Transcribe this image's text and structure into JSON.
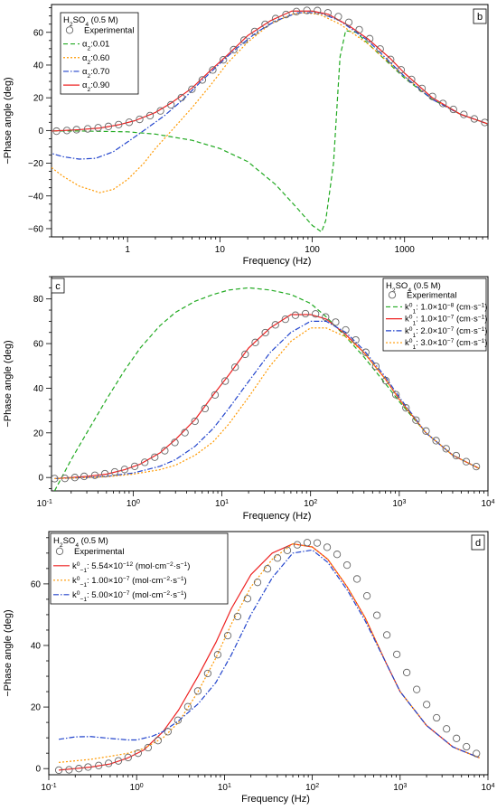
{
  "chart_data": [
    {
      "panel": "b",
      "type": "line",
      "xscale": "log",
      "xlim": [
        0.15,
        8000
      ],
      "ylim": [
        -65,
        77
      ],
      "xlabel": "Frequency (Hz)",
      "ylabel": "−Phase angle (deg)",
      "xticks": [
        1,
        10,
        100,
        1000
      ],
      "xtick_labels": [
        "1",
        "10",
        "100",
        "1000"
      ],
      "yticks": [
        -60,
        -40,
        -20,
        0,
        20,
        40,
        60
      ],
      "grid": false,
      "legend_position": "top-left",
      "legend_title_parts": [
        "H",
        "2",
        "SO",
        "4",
        " (0.5 M)"
      ],
      "experimental": {
        "name": "Experimental",
        "x": [
          0.13,
          0.17,
          0.22,
          0.28,
          0.37,
          0.48,
          0.62,
          0.8,
          1.04,
          1.35,
          1.75,
          2.27,
          2.95,
          3.83,
          4.97,
          6.45,
          8.37,
          10.9,
          14.1,
          18.3,
          23.8,
          30.9,
          40.1,
          52.0,
          67.5,
          87.6,
          113.7,
          147.6,
          191.6,
          248.7,
          322.8,
          419.0,
          543.9,
          706.0,
          916.4,
          1189.5,
          1544.1,
          2004.3,
          2601.8,
          3377.3,
          4383.9,
          5690.6,
          7386.7
        ],
        "y": [
          -0.5,
          -0.4,
          0.0,
          0.5,
          1.0,
          1.7,
          2.5,
          3.6,
          5.0,
          6.8,
          9.1,
          12.0,
          15.7,
          20.1,
          25.2,
          30.9,
          37.0,
          43.2,
          49.4,
          55.2,
          60.5,
          64.9,
          68.4,
          70.9,
          72.7,
          73.4,
          73.3,
          71.9,
          69.6,
          66.1,
          61.6,
          56.1,
          49.8,
          43.4,
          37.1,
          31.2,
          25.7,
          20.8,
          16.5,
          12.9,
          9.8,
          7.1,
          4.9
        ]
      },
      "series": [
        {
          "name": "α₂:0.01",
          "label_parts": [
            "α",
            "2",
            ":0.01"
          ],
          "color": "#22aa22",
          "dash": "5,3",
          "x": [
            0.13,
            0.3,
            1,
            2,
            5,
            10,
            20,
            40,
            70,
            100,
            126,
            140,
            170,
            200,
            230,
            300,
            500,
            1000,
            2000,
            4000,
            8000
          ],
          "y": [
            -0.3,
            -0.3,
            -0.8,
            -2.2,
            -6,
            -11,
            -19,
            -33,
            -48,
            -58,
            -62,
            -55,
            -20,
            45,
            61,
            60,
            48,
            32,
            19,
            10,
            4
          ]
        },
        {
          "name": "α₂:0.60",
          "label_parts": [
            "α",
            "2",
            ":0.60"
          ],
          "color": "#ff9900",
          "dash": "2,2",
          "x": [
            0.13,
            0.2,
            0.3,
            0.5,
            0.7,
            1,
            1.5,
            2,
            3,
            5,
            8,
            12,
            20,
            35,
            60,
            80,
            120,
            200,
            400,
            1000,
            2000,
            4000,
            8000
          ],
          "y": [
            -20,
            -28,
            -34,
            -38,
            -36,
            -30,
            -20,
            -11,
            0,
            14,
            28,
            41,
            54,
            65,
            71,
            72,
            71,
            65,
            53,
            33,
            19,
            10,
            4
          ]
        },
        {
          "name": "α₂:0.70",
          "label_parts": [
            "α",
            "2",
            ":0.70"
          ],
          "color": "#2244cc",
          "dash": "6,2,1.5,2",
          "x": [
            0.13,
            0.2,
            0.3,
            0.45,
            0.7,
            1,
            1.5,
            2.5,
            4,
            6,
            10,
            15,
            25,
            40,
            70,
            120,
            200,
            400,
            1000,
            2000,
            4000,
            8000
          ],
          "y": [
            -13,
            -16,
            -17.5,
            -17,
            -13,
            -7,
            0,
            9,
            19,
            29,
            41,
            50,
            60,
            67,
            72,
            72,
            67,
            55,
            33,
            19,
            10,
            4
          ]
        },
        {
          "name": "α₂:0.90",
          "label_parts": [
            "α",
            "2",
            ":0.90"
          ],
          "color": "#ee2222",
          "dash": "",
          "x": [
            0.13,
            0.2,
            0.3,
            0.5,
            0.8,
            1.2,
            2,
            3,
            5,
            8,
            12,
            20,
            35,
            60,
            100,
            150,
            250,
            400,
            700,
            1000,
            2000,
            4000,
            8000
          ],
          "y": [
            -0.5,
            0,
            0.5,
            1.5,
            3.5,
            6,
            11,
            17,
            26,
            37,
            46,
            58,
            67,
            73,
            73,
            71,
            64,
            56,
            44,
            35,
            20,
            10,
            4
          ]
        }
      ]
    },
    {
      "panel": "c",
      "type": "line",
      "xscale": "log",
      "xlim": [
        0.12,
        10000
      ],
      "ylim": [
        -6,
        90
      ],
      "xlabel": "Frequency (Hz)",
      "ylabel": "−Phase angle (deg)",
      "xticks": [
        0.1,
        1,
        10,
        100,
        1000,
        10000
      ],
      "xtick_exponents": [
        "-1",
        "0",
        "1",
        "2",
        "3",
        "4"
      ],
      "yticks": [
        0,
        20,
        40,
        60,
        80
      ],
      "grid": false,
      "legend_position": "top-right",
      "legend_title_parts": [
        "H",
        "2",
        "SO",
        "4",
        " (0.5 M)"
      ],
      "experimental": {
        "name": "Experimental",
        "x": [
          0.13,
          0.17,
          0.22,
          0.28,
          0.37,
          0.48,
          0.62,
          0.8,
          1.04,
          1.35,
          1.75,
          2.27,
          2.95,
          3.83,
          4.97,
          6.45,
          8.37,
          10.9,
          14.1,
          18.3,
          23.8,
          30.9,
          40.1,
          52.0,
          67.5,
          87.6,
          113.7,
          147.6,
          191.6,
          248.7,
          322.8,
          419.0,
          543.9,
          706.0,
          916.4,
          1189.5,
          1544.1,
          2004.3,
          2601.8,
          3377.3,
          4383.9,
          5690.6,
          7386.7
        ],
        "y": [
          -0.5,
          -0.4,
          0.0,
          0.5,
          1.0,
          1.7,
          2.5,
          3.6,
          5.0,
          6.8,
          9.1,
          12.0,
          15.7,
          20.1,
          25.2,
          30.9,
          37.0,
          43.2,
          49.4,
          55.2,
          60.5,
          64.9,
          68.4,
          70.9,
          72.7,
          73.4,
          73.3,
          71.9,
          69.6,
          66.1,
          61.6,
          56.1,
          49.8,
          43.4,
          37.1,
          31.2,
          25.7,
          20.8,
          16.5,
          12.9,
          9.8,
          7.1,
          4.9
        ]
      },
      "series": [
        {
          "name": "k⁰₁: 1.0×10⁻⁸ (cm·s⁻¹)",
          "label_parts": [
            "k",
            "0",
            "1",
            ": 1.0×10",
            "−8",
            " (cm·s",
            "−1",
            ")"
          ],
          "color": "#22aa22",
          "dash": "5,3",
          "x": [
            0.13,
            0.2,
            0.3,
            0.5,
            0.8,
            1.2,
            2,
            3,
            5,
            8,
            12,
            20,
            35,
            60,
            100,
            150,
            250,
            400,
            700,
            1000,
            2000,
            4000,
            8000
          ],
          "y": [
            -6,
            8,
            20,
            35,
            48,
            58,
            68,
            74,
            79,
            82,
            84,
            85,
            84,
            82,
            78,
            72,
            63,
            54,
            42,
            34,
            20,
            10,
            4
          ]
        },
        {
          "name": "k⁰₁: 1.0×10⁻⁷ (cm·s⁻¹)",
          "label_parts": [
            "k",
            "0",
            "1",
            ": 1.0×10",
            "−7",
            " (cm·s",
            "−1",
            ")"
          ],
          "color": "#ee2222",
          "dash": "",
          "x": [
            0.13,
            0.2,
            0.3,
            0.5,
            0.8,
            1.2,
            2,
            3,
            5,
            8,
            12,
            20,
            35,
            60,
            100,
            150,
            250,
            400,
            700,
            1000,
            2000,
            4000,
            8000
          ],
          "y": [
            -0.5,
            0,
            0.5,
            1.5,
            3.5,
            6,
            11,
            17,
            26,
            37,
            46,
            58,
            67,
            73,
            73,
            71,
            64,
            56,
            44,
            35,
            20,
            10,
            4
          ]
        },
        {
          "name": "k⁰₁: 2.0×10⁻⁷ (cm·s⁻¹)",
          "label_parts": [
            "k",
            "0",
            "1",
            ": 2.0×10",
            "−7",
            " (cm·s",
            "−1",
            ")"
          ],
          "color": "#2244cc",
          "dash": "6,2,1.5,2",
          "x": [
            0.13,
            0.3,
            0.5,
            1,
            2,
            3,
            5,
            8,
            12,
            20,
            35,
            60,
            100,
            150,
            250,
            400,
            700,
            1000,
            2000,
            4000,
            8000
          ],
          "y": [
            -0.5,
            0,
            0.5,
            2,
            5,
            8,
            14,
            22,
            31,
            43,
            56,
            65,
            70,
            70,
            65,
            57,
            45,
            36,
            20,
            10,
            4
          ]
        },
        {
          "name": "k⁰₁: 3.0×10⁻⁷ (cm·s⁻¹)",
          "label_parts": [
            "k",
            "0",
            "1",
            ": 3.0×10",
            "−7",
            " (cm·s",
            "−1",
            ")"
          ],
          "color": "#ff9900",
          "dash": "2,2",
          "x": [
            0.13,
            0.3,
            0.5,
            1,
            2,
            3,
            5,
            8,
            12,
            20,
            35,
            60,
            100,
            150,
            250,
            400,
            700,
            1000,
            2000,
            4000,
            8000
          ],
          "y": [
            -0.5,
            0,
            0.3,
            1.5,
            3.5,
            5.5,
            10,
            16,
            24,
            36,
            50,
            61,
            67,
            67,
            63,
            56,
            44,
            35,
            20,
            10,
            4
          ]
        }
      ]
    },
    {
      "panel": "d",
      "type": "line",
      "xscale": "log",
      "xlim": [
        0.1,
        10000
      ],
      "ylim": [
        -2,
        77
      ],
      "xlabel": "Frequency (Hz)",
      "ylabel": "−Phase angle (deg)",
      "xticks": [
        0.1,
        1,
        10,
        100,
        1000,
        10000
      ],
      "xtick_exponents": [
        "-1",
        "0",
        "1",
        "2",
        "3",
        "4"
      ],
      "yticks": [
        0,
        20,
        40,
        60
      ],
      "grid": false,
      "legend_position": "top-left",
      "legend_title_parts": [
        "H",
        "2",
        "SO",
        "4",
        " (0.5 M)"
      ],
      "experimental": {
        "name": "Experimental",
        "x": [
          0.13,
          0.17,
          0.22,
          0.28,
          0.37,
          0.48,
          0.62,
          0.8,
          1.04,
          1.35,
          1.75,
          2.27,
          2.95,
          3.83,
          4.97,
          6.45,
          8.37,
          10.9,
          14.1,
          18.3,
          23.8,
          30.9,
          40.1,
          52.0,
          67.5,
          87.6,
          113.7,
          147.6,
          191.6,
          248.7,
          322.8,
          419.0,
          543.9,
          706.0,
          916.4,
          1189.5,
          1544.1,
          2004.3,
          2601.8,
          3377.3,
          4383.9,
          5690.6,
          7386.7
        ],
        "y": [
          -0.5,
          -0.4,
          0.0,
          0.5,
          1.0,
          1.7,
          2.5,
          3.6,
          5.0,
          6.8,
          9.1,
          12.0,
          15.7,
          20.1,
          25.2,
          30.9,
          37.0,
          43.2,
          49.4,
          55.2,
          60.5,
          64.9,
          68.4,
          70.9,
          72.7,
          73.4,
          73.3,
          71.9,
          69.6,
          66.1,
          61.6,
          56.1,
          49.8,
          43.4,
          37.1,
          31.2,
          25.7,
          20.8,
          16.5,
          12.9,
          9.8,
          7.1,
          4.9
        ]
      },
      "series": [
        {
          "name": "k⁰₋₁: 5.54×10⁻¹² (mol·cm⁻²·s⁻¹)",
          "label_parts": [
            "k",
            "0",
            "−1",
            ": 5.54×10",
            "−12",
            " (mol·cm",
            "−2",
            "·s",
            "−1",
            ")"
          ],
          "color": "#ee2222",
          "dash": "",
          "x": [
            0.13,
            0.2,
            0.3,
            0.5,
            0.8,
            1.2,
            2,
            3,
            5,
            8,
            12,
            20,
            35,
            60,
            100,
            150,
            250,
            400,
            700,
            1000,
            2000,
            4000,
            8000
          ],
          "y": [
            -0.5,
            0,
            0.5,
            1.5,
            3.5,
            6,
            12,
            19,
            30,
            41,
            52,
            63,
            70,
            73,
            72,
            68,
            59,
            49,
            34,
            25,
            14,
            7,
            3.5
          ]
        },
        {
          "name": "k⁰₋₁: 1.00×10⁻⁷ (mol·cm⁻²·s⁻¹)",
          "label_parts": [
            "k",
            "0",
            "−1",
            ": 1.00×10",
            "−7",
            " (mol·cm",
            "−2",
            "·s",
            "−1",
            ")"
          ],
          "color": "#ff9900",
          "dash": "2,2",
          "x": [
            0.13,
            0.3,
            0.5,
            0.8,
            1.2,
            2,
            3,
            5,
            8,
            12,
            20,
            35,
            60,
            100,
            150,
            250,
            400,
            700,
            1000,
            2000,
            4000,
            8000
          ],
          "y": [
            2,
            3,
            4,
            5,
            6.5,
            10,
            15,
            25,
            36,
            47,
            59,
            68,
            73,
            72,
            68,
            59,
            49,
            34,
            25,
            14,
            7,
            3.5
          ]
        },
        {
          "name": "k⁰₋₁: 5.00×10⁻⁷ (mol·cm⁻²·s⁻¹)",
          "label_parts": [
            "k",
            "0",
            "−1",
            ": 5.00×10",
            "−7",
            " (mol·cm",
            "−2",
            "·s",
            "−1",
            ")"
          ],
          "color": "#2244cc",
          "dash": "6,2,1.5,2",
          "x": [
            0.13,
            0.2,
            0.3,
            0.5,
            0.8,
            1,
            1.5,
            2,
            3,
            5,
            8,
            12,
            20,
            35,
            60,
            100,
            150,
            250,
            400,
            700,
            1000,
            2000,
            4000,
            8000
          ],
          "y": [
            9.5,
            10.3,
            10.4,
            9.8,
            9.3,
            9.3,
            10.5,
            12,
            15.5,
            21,
            28,
            37,
            50,
            62,
            70,
            71,
            67,
            58,
            48,
            34,
            25,
            14,
            7,
            3.5
          ]
        }
      ]
    }
  ]
}
